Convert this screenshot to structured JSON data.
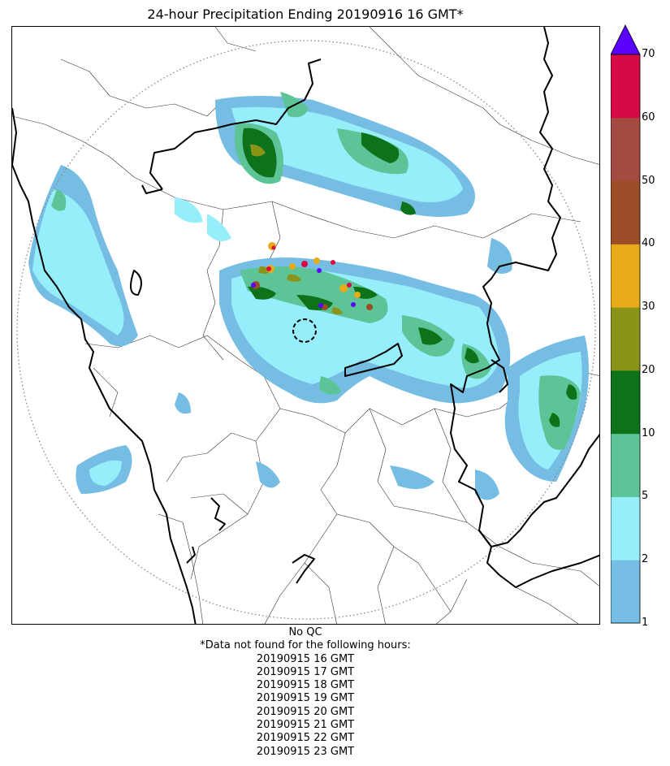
{
  "title": "24-hour Precipitation Ending 20190916 16 GMT*",
  "colorbar": {
    "ticks": [
      "1",
      "2",
      "5",
      "10",
      "20",
      "30",
      "40",
      "50",
      "60",
      "70"
    ],
    "bins": [
      {
        "from": 1,
        "to": 2,
        "color": "#76bde3"
      },
      {
        "from": 2,
        "to": 5,
        "color": "#96eefb"
      },
      {
        "from": 5,
        "to": 10,
        "color": "#5cc496"
      },
      {
        "from": 10,
        "to": 20,
        "color": "#0e721a"
      },
      {
        "from": 20,
        "to": 30,
        "color": "#8a9419"
      },
      {
        "from": 30,
        "to": 40,
        "color": "#e7aa19"
      },
      {
        "from": 40,
        "to": 50,
        "color": "#9a4d27"
      },
      {
        "from": 50,
        "to": 60,
        "color": "#a44a41"
      },
      {
        "from": 60,
        "to": 70,
        "color": "#d60a44"
      }
    ],
    "over_color": "#5a00ff"
  },
  "notes": {
    "qc": "No QC",
    "missing_header": "*Data not found for the following hours:",
    "missing_hours": [
      "20190915 16 GMT",
      "20190915 17 GMT",
      "20190915 18 GMT",
      "20190915 19 GMT",
      "20190915 20 GMT",
      "20190915 21 GMT",
      "20190915 22 GMT",
      "20190915 23 GMT"
    ]
  }
}
